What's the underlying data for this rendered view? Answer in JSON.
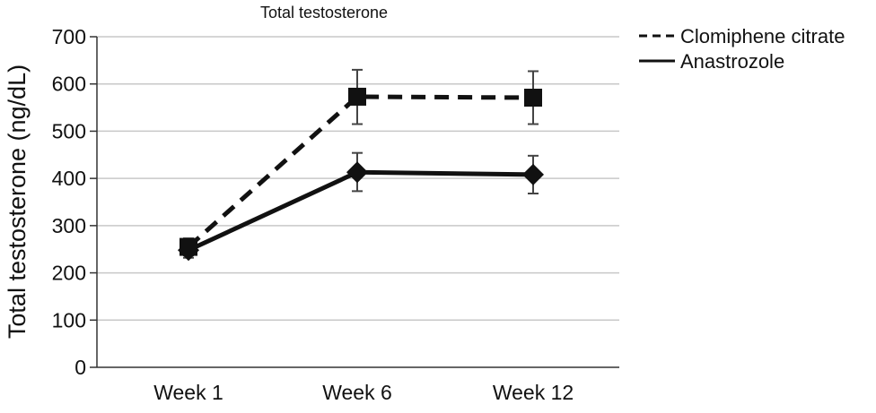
{
  "chart_data": {
    "type": "line",
    "title": "Total testosterone",
    "ylabel": "Total testosterone (ng/dL)",
    "xlabel": "",
    "categories": [
      "Week 1",
      "Week 6",
      "Week 12"
    ],
    "ylim": [
      0,
      700
    ],
    "yticks": [
      0,
      100,
      200,
      300,
      400,
      500,
      600,
      700
    ],
    "grid": true,
    "legend_position": "top-right",
    "series": [
      {
        "name": "Clomiphene citrate",
        "line_style": "dashed",
        "marker": "square",
        "color": "#111111",
        "values": [
          255,
          573,
          571
        ],
        "error_low": [
          237,
          515,
          515
        ],
        "error_high": [
          273,
          630,
          627
        ]
      },
      {
        "name": "Anastrozole",
        "line_style": "solid",
        "marker": "diamond",
        "color": "#111111",
        "values": [
          248,
          413,
          408
        ],
        "error_low": [
          232,
          373,
          368
        ],
        "error_high": [
          264,
          454,
          448
        ]
      }
    ]
  }
}
